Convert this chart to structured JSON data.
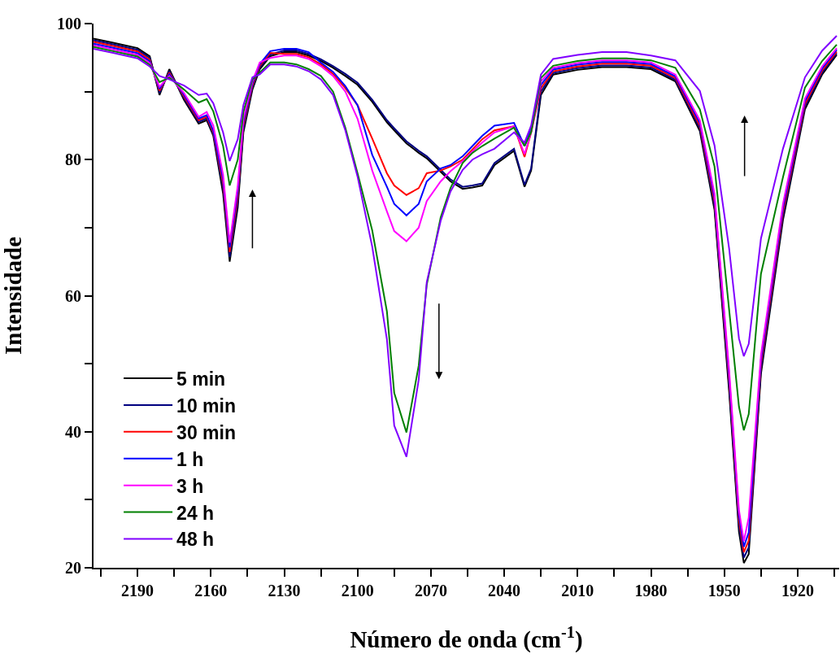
{
  "chart_data": {
    "type": "line",
    "xlabel": "Número de onda (cm$^{-1}$)",
    "ylabel": "Intensidade",
    "x": [
      2208,
      2200,
      2190,
      2185,
      2181,
      2177,
      2171,
      2165,
      2161.7,
      2159,
      2155,
      2152.3,
      2149,
      2146.7,
      2143,
      2140,
      2135.7,
      2130,
      2125,
      2120,
      2115,
      2110,
      2105,
      2100,
      2094,
      2088,
      2085,
      2080,
      2075,
      2071.7,
      2066,
      2062,
      2057,
      2053,
      2049,
      2044,
      2036,
      2031.7,
      2029,
      2025,
      2020,
      2010,
      2000,
      1990,
      1980,
      1970,
      1960,
      1954,
      1948,
      1944,
      1942,
      1940,
      1935,
      1926,
      1917,
      1910,
      1904
    ],
    "series": [
      {
        "name": "5 min",
        "color": "#000000",
        "values": [
          97.8,
          97.2,
          96.4,
          95.2,
          89.5,
          93.3,
          88.8,
          85.3,
          85.8,
          83.5,
          75,
          65,
          73,
          84,
          90.3,
          93.3,
          95.2,
          95.8,
          95.8,
          95.3,
          94.5,
          93.5,
          92.3,
          91,
          88.5,
          85.5,
          84.3,
          82.4,
          81,
          80.2,
          78.2,
          76.8,
          75.7,
          75.9,
          76.2,
          79.2,
          81.3,
          76,
          78.4,
          89.5,
          92.5,
          93.2,
          93.6,
          93.6,
          93.3,
          91.5,
          84.2,
          72.6,
          45.8,
          25.3,
          20.7,
          22,
          48.5,
          71.1,
          87.4,
          92.5,
          95.4
        ]
      },
      {
        "name": "10 min",
        "color": "#000080",
        "values": [
          97.55,
          96.95,
          96.15,
          94.95,
          89.8,
          93.05,
          89.05,
          85.55,
          86.05,
          83.75,
          75.7,
          65.7,
          73.8,
          84.5,
          90.6,
          93.55,
          95.45,
          96.05,
          96.05,
          95.55,
          94.75,
          93.75,
          92.6,
          91.3,
          88.8,
          85.8,
          84.6,
          82.7,
          81.3,
          80.5,
          78.5,
          77.1,
          76,
          76.2,
          76.5,
          79.5,
          81.6,
          76.3,
          78.7,
          90,
          92.75,
          93.45,
          93.85,
          93.85,
          93.55,
          91.75,
          84.6,
          73.2,
          46.6,
          26.1,
          21.5,
          23,
          49.2,
          71.7,
          87.8,
          92.8,
          95.65
        ]
      },
      {
        "name": "30 min",
        "color": "#ff0000",
        "values": [
          97.3,
          96.7,
          95.9,
          94.7,
          90.1,
          92.8,
          89.3,
          85.8,
          86.3,
          84,
          76.4,
          66.4,
          74.6,
          85,
          90.9,
          93.8,
          95.7,
          95.55,
          95.55,
          95.05,
          94,
          92.6,
          90.5,
          88,
          83.1,
          78,
          76.2,
          74.8,
          75.8,
          78,
          78.4,
          79,
          80,
          81.5,
          83,
          84.3,
          84.9,
          80.4,
          84,
          90.5,
          93,
          93.7,
          94.1,
          94.1,
          93.8,
          92,
          85,
          73.8,
          47.4,
          26.9,
          22.3,
          24,
          49.9,
          72.3,
          88.2,
          93.1,
          95.9
        ]
      },
      {
        "name": "1 h",
        "color": "#0000ff",
        "values": [
          97.05,
          96.45,
          95.65,
          94.45,
          90.4,
          92.55,
          89.55,
          86.05,
          86.55,
          84.25,
          77.1,
          67.1,
          75.4,
          85.5,
          91.2,
          94.05,
          95.95,
          96.3,
          96.3,
          95.8,
          94.25,
          92.9,
          90.8,
          88,
          80.7,
          76,
          73.5,
          71.8,
          73.5,
          76.8,
          78.7,
          79.2,
          80.5,
          82,
          83.5,
          85,
          85.4,
          82,
          84.5,
          91,
          93.25,
          93.95,
          94.35,
          94.35,
          94.05,
          92.25,
          85.4,
          74.4,
          48.2,
          27.7,
          23.1,
          25.2,
          50.6,
          72.9,
          88.6,
          93.4,
          96.15
        ]
      },
      {
        "name": "3 h",
        "color": "#ff00ff",
        "values": [
          96.8,
          96.2,
          95.4,
          94.2,
          90.7,
          92.3,
          89.8,
          86.3,
          87,
          85,
          77.8,
          67.8,
          76.2,
          86,
          91.5,
          94.3,
          94.95,
          95.3,
          95.3,
          94.8,
          93.75,
          92.3,
          90,
          86,
          78.4,
          72.4,
          69.5,
          68,
          70,
          73.9,
          76.8,
          78.3,
          79.8,
          81.2,
          82.5,
          84,
          84.9,
          80.8,
          84,
          91.5,
          93.5,
          94.2,
          94.6,
          94.6,
          94.3,
          92.5,
          85.8,
          75,
          49,
          28.5,
          23.9,
          27.4,
          51.3,
          73.5,
          89,
          93.7,
          96.4
        ]
      },
      {
        "name": "24 h",
        "color": "#008000",
        "values": [
          96.55,
          95.95,
          95.15,
          93.95,
          91.4,
          92.05,
          90.3,
          88.4,
          88.9,
          87.1,
          82,
          76.2,
          80,
          87,
          91.8,
          92.8,
          94.3,
          94.3,
          94,
          93.3,
          92.3,
          90,
          84.7,
          78,
          69.6,
          57.7,
          45.7,
          39.9,
          49.7,
          61.6,
          71.5,
          75.8,
          79.5,
          81,
          82,
          83.1,
          84.7,
          82,
          84,
          92,
          93.8,
          94.5,
          94.9,
          94.9,
          94.6,
          93.5,
          87.4,
          79,
          57.9,
          43.7,
          40.2,
          42.6,
          63.2,
          77.4,
          90.6,
          94.5,
          96.9
        ]
      },
      {
        "name": "48 h",
        "color": "#8000ff",
        "values": [
          96.3,
          95.7,
          94.9,
          93.7,
          92.3,
          91.8,
          90.9,
          89.5,
          89.7,
          88.3,
          84,
          79.8,
          83,
          88,
          92.1,
          92.55,
          94,
          94,
          93.7,
          93,
          91.8,
          89.5,
          84.3,
          77.5,
          67.2,
          53.6,
          40.9,
          36.3,
          47.6,
          62,
          71,
          75.3,
          78.5,
          80,
          80.8,
          81.6,
          84,
          82.5,
          85,
          92.5,
          94.8,
          95.4,
          95.8,
          95.8,
          95.3,
          94.6,
          90.1,
          82.1,
          66.9,
          53.7,
          51.1,
          52.9,
          68.4,
          81.6,
          92.1,
          96,
          98.2
        ]
      }
    ],
    "xlim": [
      2208,
      1903
    ],
    "xticks": [
      {
        "value": 2205,
        "label": null
      },
      2190,
      {
        "value": 2175,
        "label": null
      },
      2160,
      {
        "value": 2145,
        "label": null
      },
      2130,
      {
        "value": 2115,
        "label": null
      },
      2100,
      {
        "value": 2085,
        "label": null
      },
      2070,
      {
        "value": 2055,
        "label": null
      },
      2040,
      {
        "value": 2025,
        "label": null
      },
      2010,
      {
        "value": 1995,
        "label": null
      },
      1980,
      {
        "value": 1965,
        "label": null
      },
      1950,
      {
        "value": 1935,
        "label": null
      },
      1920,
      {
        "value": 1905,
        "label": null
      }
    ],
    "ylim": [
      20,
      100
    ],
    "yticks": [
      20,
      {
        "value": 30,
        "label": null
      },
      40,
      {
        "value": 50,
        "label": null
      },
      60,
      {
        "value": 70,
        "label": null
      },
      80,
      {
        "value": 90,
        "label": null
      },
      100
    ],
    "grid": false,
    "legend": "bottom left",
    "line_style": "solid"
  }
}
